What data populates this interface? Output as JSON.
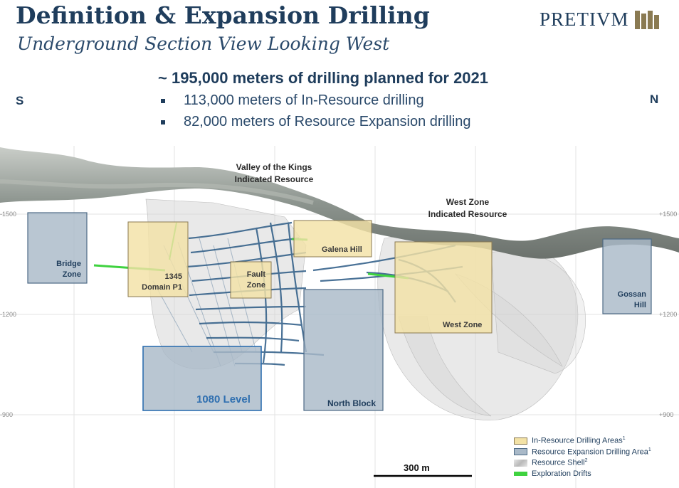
{
  "header": {
    "title": "Definition & Expansion Drilling",
    "subtitle": "Underground Section View Looking West",
    "logo_text": "PRETIVM"
  },
  "summary": {
    "headline": "~ 195,000 meters of drilling planned for 2021",
    "bullets": [
      "113,000 meters of In-Resource drilling",
      "82,000 meters of Resource Expansion drilling"
    ]
  },
  "compass": {
    "south": "S",
    "north": "N"
  },
  "elevation_ticks": {
    "left": [
      "-1500",
      "-1200",
      "-900"
    ],
    "right": [
      "+1500",
      "+1200",
      "+900"
    ]
  },
  "annotations": {
    "valley_line1": "Valley of the Kings",
    "valley_line2": "Indicated Resource",
    "westzone_line1": "West Zone",
    "westzone_line2": "Indicated Resource"
  },
  "zones": {
    "bridge_line1": "Bridge",
    "bridge_line2": "Zone",
    "domain_line1": "1345",
    "domain_line2": "Domain P1",
    "fault_line1": "Fault",
    "fault_line2": "Zone",
    "galena": "Galena Hill",
    "west_zone": "West Zone",
    "gossan_line1": "Gossan",
    "gossan_line2": "Hill",
    "level_1080": "1080 Level",
    "north_block": "North Block"
  },
  "legend": {
    "in_resource": "In-Resource Drilling Areas",
    "in_resource_note": "1",
    "expansion": "Resource Expansion Drilling Area",
    "expansion_note": "1",
    "shell": "Resource Shell",
    "shell_note": "2",
    "drifts": "Exploration Drifts"
  },
  "scale_bar": {
    "label": "300 m"
  },
  "colors": {
    "in_resource_fill": "#f3e2a6",
    "in_resource_border": "#8a7a52",
    "expansion_fill": "#a9b9c8",
    "expansion_border": "#4d6a85",
    "level_border": "#2f6fb0",
    "drift_green": "#3fd23f",
    "drill_blue": "#2b5a85"
  }
}
